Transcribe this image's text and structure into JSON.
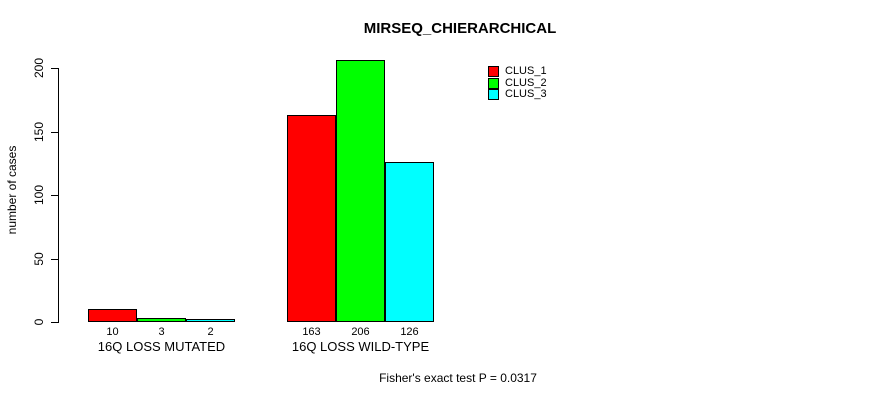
{
  "chart_data": {
    "type": "bar",
    "title": "MIRSEQ_CHIERARCHICAL",
    "xlabel": "",
    "ylabel": "number of cases",
    "ylim": [
      0,
      200
    ],
    "y_ticks": [
      0,
      50,
      100,
      150,
      200
    ],
    "grid": false,
    "legend_position": "top-right",
    "categories": [
      "16Q LOSS MUTATED",
      "16Q LOSS WILD-TYPE"
    ],
    "series": [
      {
        "name": "CLUS_1",
        "color": "#ff0000",
        "values": [
          10,
          163
        ]
      },
      {
        "name": "CLUS_2",
        "color": "#00ff00",
        "values": [
          3,
          206
        ]
      },
      {
        "name": "CLUS_3",
        "color": "#00ffff",
        "values": [
          2,
          126
        ]
      }
    ],
    "bar_value_labels": [
      [
        "10",
        "3",
        "2"
      ],
      [
        "163",
        "206",
        "126"
      ]
    ],
    "annotation": "Fisher's exact test P = 0.0317"
  },
  "colors": {
    "axis": "#000000",
    "background": "#ffffff",
    "clus_1": "#ff0000",
    "clus_2": "#00ff00",
    "clus_3": "#00ffff"
  }
}
